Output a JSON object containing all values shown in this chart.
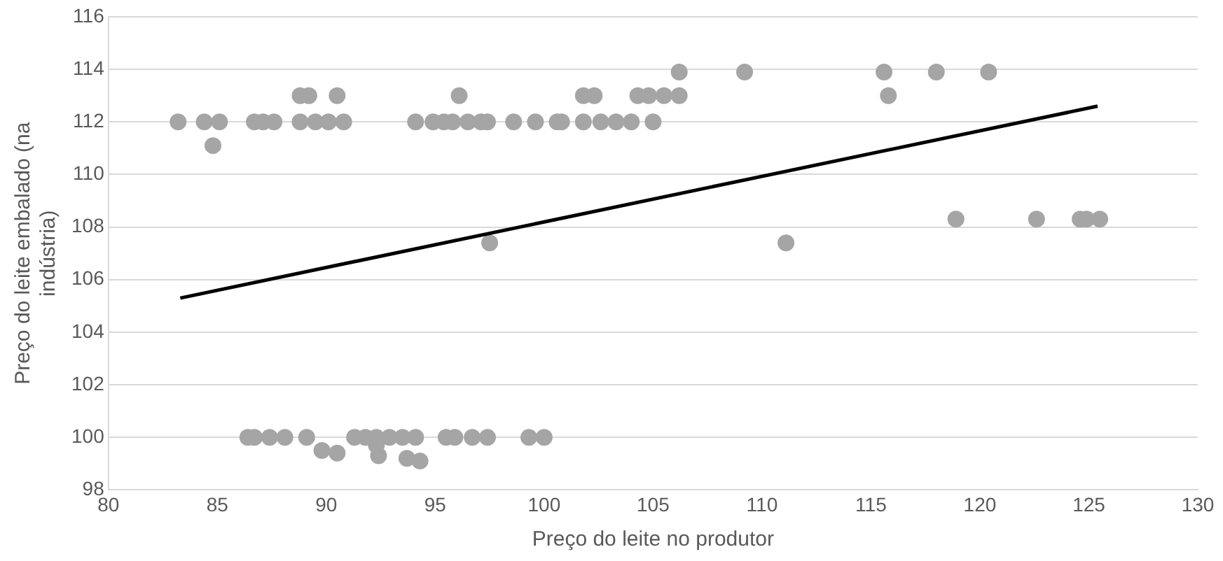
{
  "chart_data": {
    "type": "scatter",
    "xlabel": "Preço do leite no produtor",
    "ylabel": "Preço do leite embalado (na indústria)",
    "xlim": [
      80,
      130
    ],
    "xticks": [
      80,
      85,
      90,
      95,
      100,
      105,
      110,
      115,
      120,
      125,
      130
    ],
    "ylim": [
      98,
      116
    ],
    "yticks": [
      98,
      100,
      102,
      104,
      106,
      108,
      110,
      112,
      114,
      116
    ],
    "grid": "y",
    "legend": false,
    "marker": "circle",
    "series": [
      {
        "color": "#a5a5a5",
        "x": [
          83.2,
          84.4,
          85.1,
          86.7,
          87.1,
          87.6,
          88.8,
          89.5,
          90.1,
          90.8,
          94.1,
          94.9,
          95.4,
          95.8,
          96.5,
          97.1,
          97.4,
          98.6,
          99.6,
          100.6,
          100.8,
          101.8,
          102.6,
          103.3,
          104.0,
          105.0,
          88.8,
          89.2,
          90.5,
          96.1,
          101.8,
          102.3,
          104.3,
          104.8,
          105.5,
          106.2,
          106.2,
          109.2,
          115.6,
          118.0,
          120.4,
          115.8,
          84.8,
          97.5,
          111.1,
          118.9,
          122.6,
          124.6,
          124.9,
          125.5,
          86.4,
          86.7,
          87.4,
          88.1,
          89.1,
          91.3,
          91.8,
          92.3,
          92.9,
          93.5,
          94.1,
          95.5,
          95.9,
          96.7,
          97.4,
          99.3,
          100.0,
          89.8,
          90.5,
          92.4,
          92.3,
          93.7,
          94.3
        ],
        "values": [
          112,
          112,
          112,
          112,
          112,
          112,
          112,
          112,
          112,
          112,
          112,
          112,
          112,
          112,
          112,
          112,
          112,
          112,
          112,
          112,
          112,
          112,
          112,
          112,
          112,
          112,
          113,
          113,
          113,
          113,
          113,
          113,
          113,
          113,
          113,
          113,
          113.9,
          113.9,
          113.9,
          113.9,
          113.9,
          113,
          111.1,
          107.4,
          107.4,
          108.3,
          108.3,
          108.3,
          108.3,
          108.3,
          100,
          100,
          100,
          100,
          100,
          100,
          100,
          100,
          100,
          100,
          100,
          100,
          100,
          100,
          100,
          100,
          100,
          99.5,
          99.4,
          99.3,
          99.7,
          99.2,
          99.1
        ]
      },
      {
        "type": "line",
        "color": "#000000",
        "x": [
          83.3,
          125.4
        ],
        "values": [
          105.3,
          112.6
        ],
        "marker": "none"
      }
    ]
  }
}
